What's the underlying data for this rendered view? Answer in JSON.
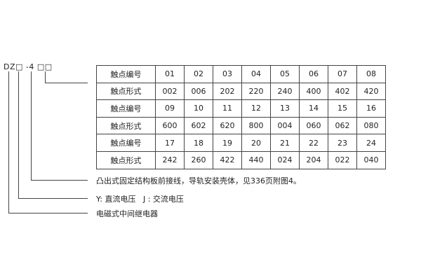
{
  "model_code": "DZ□ -4 □□",
  "table": {
    "rows": [
      [
        "触点编号",
        "01",
        "02",
        "03",
        "04",
        "05",
        "06",
        "07",
        "08"
      ],
      [
        "触点形式",
        "002",
        "006",
        "202",
        "220",
        "240",
        "400",
        "402",
        "420"
      ],
      [
        "触点编号",
        "09",
        "10",
        "11",
        "12",
        "13",
        "14",
        "15",
        "16"
      ],
      [
        "触点形式",
        "600",
        "602",
        "620",
        "800",
        "004",
        "060",
        "062",
        "080"
      ],
      [
        "触点编号",
        "17",
        "18",
        "19",
        "20",
        "21",
        "22",
        "23",
        "24"
      ],
      [
        "触点形式",
        "242",
        "260",
        "422",
        "440",
        "024",
        "204",
        "022",
        "040"
      ]
    ]
  },
  "notes": {
    "structure": "凸出式固定结构板前接线，导轨安装壳体，见336页附图4。",
    "voltage": "Y: 直流电压   J : 交流电压",
    "type": "电磁式中间继电器"
  }
}
